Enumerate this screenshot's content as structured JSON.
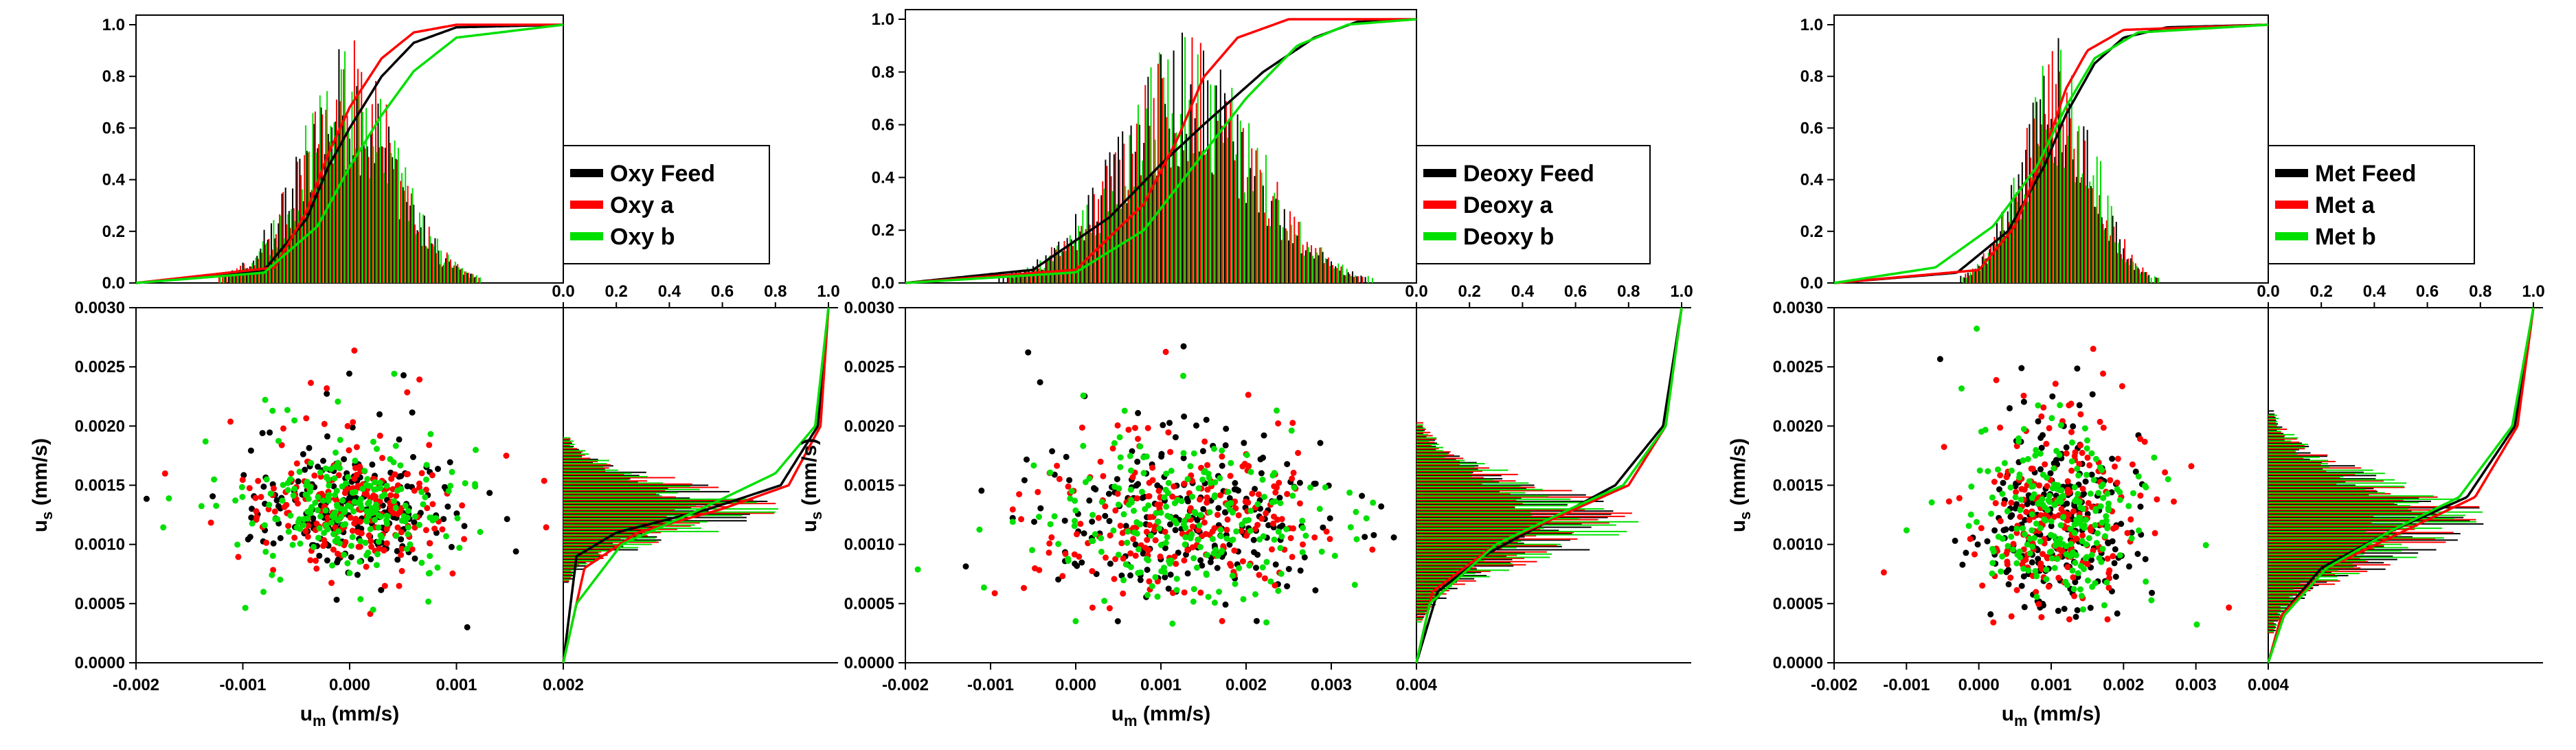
{
  "colors": {
    "feed": "#000000",
    "a": "#ff0000",
    "b": "#00e000"
  },
  "chart_data": [
    {
      "type": "scatter",
      "panel": "oxy",
      "legend": {
        "placement": "right of top histogram",
        "entries": [
          "Oxy Feed",
          "Oxy a",
          "Oxy b"
        ]
      },
      "xlabel_main": "u",
      "xlabel_sub": "m",
      "xlabel_unit": " (mm/s)",
      "ylabel_main": "u",
      "ylabel_sub": "s",
      "ylabel_unit": " (mm/s)",
      "xlim": [
        -0.002,
        0.002
      ],
      "ylim": [
        0,
        0.003
      ],
      "xticks": [
        "-0.002",
        "-0.001",
        "0.000",
        "0.001",
        "0.002"
      ],
      "yticks": [
        "0.0000",
        "0.0005",
        "0.0010",
        "0.0015",
        "0.0020",
        "0.0025",
        "0.0030"
      ],
      "hist_ticks": [
        "0.0",
        "0.2",
        "0.4",
        "0.6",
        "0.8",
        "1.0"
      ],
      "hist_range": [
        0,
        1
      ],
      "grid": false,
      "scatter_cloud": {
        "center": {
          "x": 0.0,
          "y": 0.0013
        },
        "spread": {
          "x": 0.00045,
          "y": 0.00023
        },
        "y_range": [
          0.0003,
          0.0029
        ]
      },
      "series": [
        {
          "name": "Oxy Feed",
          "color": "#000000",
          "cdf_x": [
            [
              -0.002,
              0
            ],
            [
              -0.0008,
              0.05
            ],
            [
              -0.0004,
              0.25
            ],
            [
              -0.0002,
              0.45
            ],
            [
              0.0,
              0.6
            ],
            [
              0.0003,
              0.8
            ],
            [
              0.0006,
              0.93
            ],
            [
              0.001,
              0.99
            ],
            [
              0.002,
              1
            ]
          ],
          "cdf_y": [
            [
              0,
              0
            ],
            [
              0.0009,
              0.05
            ],
            [
              0.0011,
              0.2
            ],
            [
              0.0013,
              0.55
            ],
            [
              0.0015,
              0.82
            ],
            [
              0.002,
              0.96
            ],
            [
              0.003,
              1
            ]
          ]
        },
        {
          "name": "Oxy a",
          "color": "#ff0000",
          "cdf_x": [
            [
              -0.002,
              0
            ],
            [
              -0.0007,
              0.06
            ],
            [
              -0.0004,
              0.28
            ],
            [
              -0.0002,
              0.5
            ],
            [
              0.0,
              0.68
            ],
            [
              0.0003,
              0.87
            ],
            [
              0.0006,
              0.97
            ],
            [
              0.001,
              1
            ],
            [
              0.002,
              1
            ]
          ],
          "cdf_y": [
            [
              0,
              0
            ],
            [
              0.0008,
              0.08
            ],
            [
              0.0011,
              0.28
            ],
            [
              0.0013,
              0.6
            ],
            [
              0.0015,
              0.85
            ],
            [
              0.002,
              0.97
            ],
            [
              0.003,
              1
            ]
          ]
        },
        {
          "name": "Oxy b",
          "color": "#00e000",
          "cdf_x": [
            [
              -0.002,
              0
            ],
            [
              -0.0008,
              0.04
            ],
            [
              -0.0003,
              0.22
            ],
            [
              0.0,
              0.45
            ],
            [
              0.0003,
              0.65
            ],
            [
              0.0006,
              0.82
            ],
            [
              0.001,
              0.95
            ],
            [
              0.002,
              1
            ]
          ],
          "cdf_y": [
            [
              0,
              0
            ],
            [
              0.0005,
              0.05
            ],
            [
              0.001,
              0.22
            ],
            [
              0.0013,
              0.52
            ],
            [
              0.0016,
              0.8
            ],
            [
              0.002,
              0.95
            ],
            [
              0.003,
              1
            ]
          ]
        }
      ]
    },
    {
      "type": "scatter",
      "panel": "deoxy",
      "legend": {
        "placement": "right of top histogram",
        "entries": [
          "Deoxy Feed",
          "Deoxy a",
          "Deoxy b"
        ]
      },
      "xlabel_main": "u",
      "xlabel_sub": "m",
      "xlabel_unit": " (mm/s)",
      "ylabel_main": "u",
      "ylabel_sub": "s",
      "ylabel_unit": " (mm/s)",
      "xlim": [
        -0.002,
        0.004
      ],
      "ylim": [
        0,
        0.003
      ],
      "xticks": [
        "-0.002",
        "-0.001",
        "0.000",
        "0.001",
        "0.002",
        "0.003",
        "0.004"
      ],
      "yticks": [
        "0.0000",
        "0.0005",
        "0.0010",
        "0.0015",
        "0.0020",
        "0.0025",
        "0.0030"
      ],
      "hist_ticks": [
        "0.0",
        "0.2",
        "0.4",
        "0.6",
        "0.8",
        "1.0"
      ],
      "hist_range": [
        0,
        1
      ],
      "grid": false,
      "scatter_cloud": {
        "center": {
          "x": 0.0013,
          "y": 0.0012
        },
        "spread": {
          "x": 0.0008,
          "y": 0.00032
        },
        "y_range": [
          0.0003,
          0.0029
        ]
      },
      "series": [
        {
          "name": "Deoxy Feed",
          "color": "#000000",
          "cdf_x": [
            [
              -0.002,
              0
            ],
            [
              -0.0005,
              0.05
            ],
            [
              0.0004,
              0.25
            ],
            [
              0.001,
              0.45
            ],
            [
              0.0015,
              0.6
            ],
            [
              0.0022,
              0.8
            ],
            [
              0.0028,
              0.93
            ],
            [
              0.0033,
              0.99
            ],
            [
              0.004,
              1
            ]
          ],
          "cdf_y": [
            [
              0,
              0
            ],
            [
              0.0006,
              0.08
            ],
            [
              0.0009,
              0.25
            ],
            [
              0.0012,
              0.5
            ],
            [
              0.0015,
              0.75
            ],
            [
              0.002,
              0.93
            ],
            [
              0.003,
              1
            ]
          ]
        },
        {
          "name": "Deoxy a",
          "color": "#ff0000",
          "cdf_x": [
            [
              -0.002,
              0
            ],
            [
              0.0,
              0.05
            ],
            [
              0.0008,
              0.3
            ],
            [
              0.0012,
              0.55
            ],
            [
              0.0015,
              0.78
            ],
            [
              0.0019,
              0.93
            ],
            [
              0.0025,
              1
            ],
            [
              0.004,
              1
            ]
          ],
          "cdf_y": [
            [
              0,
              0
            ],
            [
              0.0006,
              0.06
            ],
            [
              0.001,
              0.3
            ],
            [
              0.0013,
              0.6
            ],
            [
              0.0015,
              0.8
            ],
            [
              0.002,
              0.94
            ],
            [
              0.003,
              1
            ]
          ]
        },
        {
          "name": "Deoxy b",
          "color": "#00e000",
          "cdf_x": [
            [
              -0.002,
              0
            ],
            [
              0.0,
              0.04
            ],
            [
              0.0008,
              0.2
            ],
            [
              0.0014,
              0.45
            ],
            [
              0.002,
              0.7
            ],
            [
              0.0026,
              0.9
            ],
            [
              0.0032,
              0.98
            ],
            [
              0.004,
              1
            ]
          ],
          "cdf_y": [
            [
              0,
              0
            ],
            [
              0.0005,
              0.05
            ],
            [
              0.001,
              0.3
            ],
            [
              0.0013,
              0.58
            ],
            [
              0.0015,
              0.78
            ],
            [
              0.002,
              0.94
            ],
            [
              0.003,
              1
            ]
          ]
        }
      ]
    },
    {
      "type": "scatter",
      "panel": "met",
      "legend": {
        "placement": "right of top histogram",
        "entries": [
          "Met Feed",
          "Met a",
          "Met b"
        ]
      },
      "xlabel_main": "u",
      "xlabel_sub": "m",
      "xlabel_unit": " (mm/s)",
      "ylabel_main": "u",
      "ylabel_sub": "s",
      "ylabel_unit": " (mm/s)",
      "xlim": [
        -0.002,
        0.004
      ],
      "ylim": [
        0,
        0.003
      ],
      "xticks": [
        "-0.002",
        "-0.001",
        "0.000",
        "0.001",
        "0.002",
        "0.003",
        "0.004"
      ],
      "yticks": [
        "0.0000",
        "0.0005",
        "0.0010",
        "0.0015",
        "0.0020",
        "0.0025",
        "0.0030"
      ],
      "hist_ticks": [
        "0.0",
        "0.2",
        "0.4",
        "0.6",
        "0.8",
        "1.0"
      ],
      "hist_range": [
        0,
        1
      ],
      "grid": false,
      "scatter_cloud": {
        "center": {
          "x": 0.0011,
          "y": 0.0012
        },
        "spread": {
          "x": 0.0005,
          "y": 0.00035
        },
        "y_range": [
          0.0003,
          0.0029
        ]
      },
      "series": [
        {
          "name": "Met Feed",
          "color": "#000000",
          "cdf_x": [
            [
              -0.002,
              0
            ],
            [
              -0.0003,
              0.04
            ],
            [
              0.0004,
              0.2
            ],
            [
              0.0009,
              0.45
            ],
            [
              0.0012,
              0.65
            ],
            [
              0.0016,
              0.85
            ],
            [
              0.002,
              0.95
            ],
            [
              0.0026,
              0.99
            ],
            [
              0.004,
              1
            ]
          ],
          "cdf_y": [
            [
              0,
              0
            ],
            [
              0.0004,
              0.05
            ],
            [
              0.0008,
              0.2
            ],
            [
              0.0011,
              0.45
            ],
            [
              0.0014,
              0.75
            ],
            [
              0.002,
              0.93
            ],
            [
              0.003,
              1
            ]
          ]
        },
        {
          "name": "Met a",
          "color": "#ff0000",
          "cdf_x": [
            [
              -0.002,
              0
            ],
            [
              0.0,
              0.05
            ],
            [
              0.0005,
              0.22
            ],
            [
              0.0009,
              0.5
            ],
            [
              0.0012,
              0.75
            ],
            [
              0.0015,
              0.9
            ],
            [
              0.002,
              0.98
            ],
            [
              0.004,
              1
            ]
          ],
          "cdf_y": [
            [
              0,
              0
            ],
            [
              0.0004,
              0.05
            ],
            [
              0.0008,
              0.22
            ],
            [
              0.0011,
              0.5
            ],
            [
              0.0014,
              0.78
            ],
            [
              0.002,
              0.94
            ],
            [
              0.003,
              1
            ]
          ]
        },
        {
          "name": "Met b",
          "color": "#00e000",
          "cdf_x": [
            [
              -0.002,
              0
            ],
            [
              -0.0006,
              0.06
            ],
            [
              0.0002,
              0.22
            ],
            [
              0.0008,
              0.45
            ],
            [
              0.0012,
              0.68
            ],
            [
              0.0016,
              0.87
            ],
            [
              0.0022,
              0.97
            ],
            [
              0.004,
              1
            ]
          ],
          "cdf_y": [
            [
              0,
              0
            ],
            [
              0.0004,
              0.06
            ],
            [
              0.0008,
              0.22
            ],
            [
              0.0011,
              0.45
            ],
            [
              0.0014,
              0.72
            ],
            [
              0.002,
              0.92
            ],
            [
              0.003,
              1
            ]
          ]
        }
      ]
    }
  ]
}
